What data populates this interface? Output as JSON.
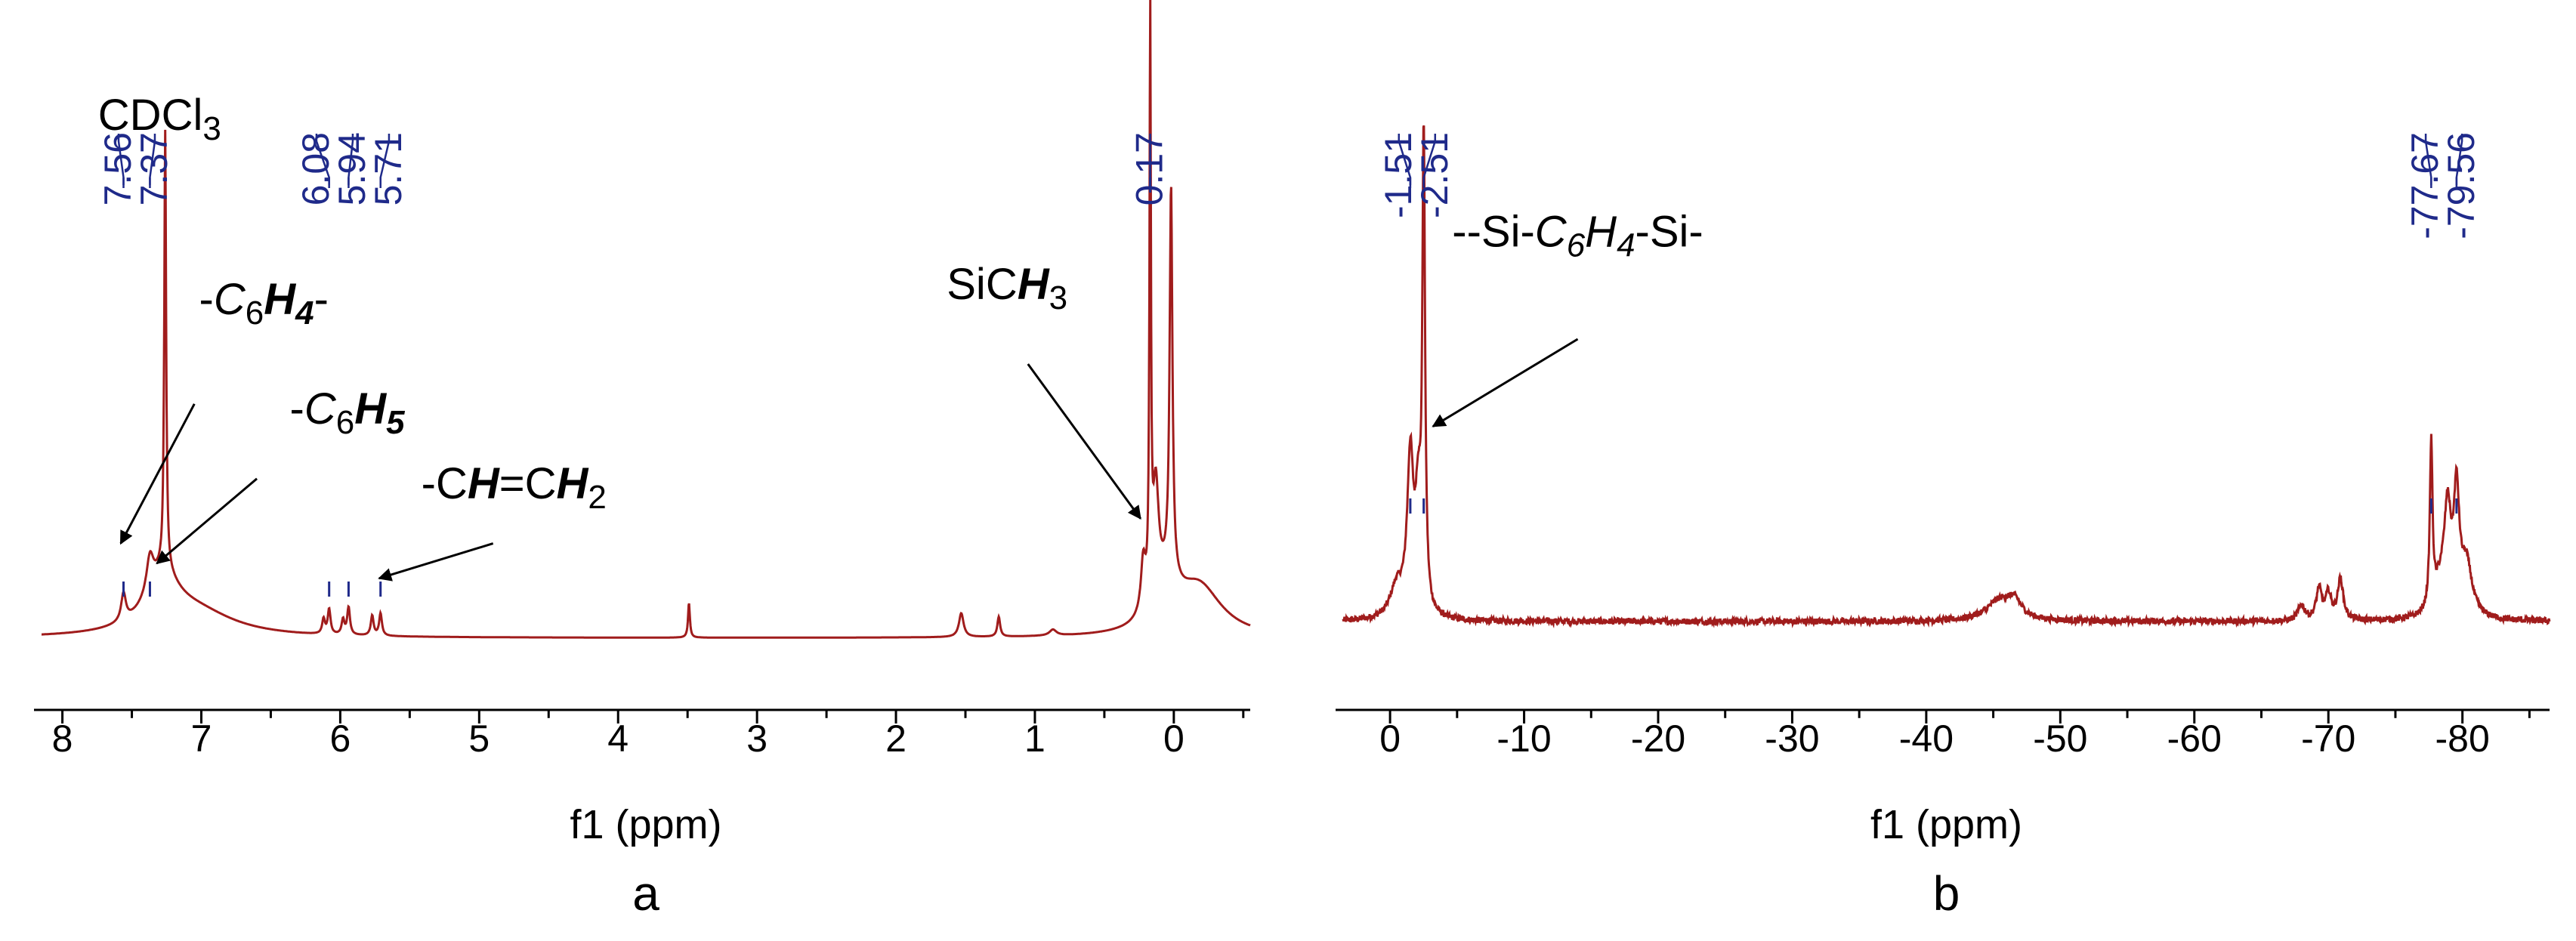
{
  "colors": {
    "spectrum": "#a01c1c",
    "peak_label": "#1f2a8a",
    "axis": "#000000"
  },
  "chart_data": [
    {
      "type": "line",
      "panel_label": "a",
      "xlabel": "f1 (ppm)",
      "xlim": [
        8.15,
        -0.55
      ],
      "x_reversed": true,
      "ticks": [
        8,
        7,
        6,
        5,
        4,
        3,
        2,
        1,
        0
      ],
      "tick_labels": [
        "8",
        "7",
        "6",
        "5",
        "4",
        "3",
        "2",
        "1",
        "0"
      ],
      "peak_labels": [
        "7.56",
        "7.37",
        "6.08",
        "5.94",
        "5.71",
        "0.17"
      ],
      "peak_positions": [
        7.56,
        7.37,
        6.08,
        5.94,
        5.71,
        0.17
      ],
      "annotations": [
        {
          "parts": [
            {
              "t": "CDCl"
            },
            {
              "t": "3",
              "sub": true
            }
          ],
          "x": 7.3,
          "y": 1.02,
          "arrow_to": null
        },
        {
          "parts": [
            {
              "t": "-"
            },
            {
              "t": "C",
              "it": true
            },
            {
              "t": "6",
              "sub": true
            },
            {
              "t": "H",
              "it": true,
              "b": true
            },
            {
              "t": "4",
              "sub": true,
              "it": true,
              "b": true
            },
            {
              "t": "-"
            }
          ],
          "x": 6.55,
          "y": 0.65,
          "arrow_from": [
            7.05,
            0.47
          ],
          "arrow_to": [
            7.58,
            0.19
          ]
        },
        {
          "parts": [
            {
              "t": "-"
            },
            {
              "t": "C",
              "it": true
            },
            {
              "t": "6",
              "sub": true
            },
            {
              "t": "H",
              "it": true,
              "b": true
            },
            {
              "t": "5",
              "sub": true,
              "it": true,
              "b": true
            }
          ],
          "x": 5.95,
          "y": 0.43,
          "arrow_from": [
            6.6,
            0.32
          ],
          "arrow_to": [
            7.32,
            0.15
          ]
        },
        {
          "parts": [
            {
              "t": "-C"
            },
            {
              "t": "H",
              "it": true,
              "b": true
            },
            {
              "t": "=C"
            },
            {
              "t": "H",
              "it": true,
              "b": true
            },
            {
              "t": "2",
              "sub": true
            }
          ],
          "x": 4.75,
          "y": 0.28,
          "arrow_from": [
            4.9,
            0.19
          ],
          "arrow_to": [
            5.72,
            0.12
          ]
        },
        {
          "parts": [
            {
              "t": "Si"
            },
            {
              "t": "C"
            },
            {
              "t": "H",
              "it": true,
              "b": true
            },
            {
              "t": "3",
              "sub": true
            }
          ],
          "x": 1.2,
          "y": 0.68,
          "arrow_from": [
            1.05,
            0.55
          ],
          "arrow_to": [
            0.24,
            0.24
          ]
        }
      ],
      "series": [
        {
          "baseline": 0.0,
          "lorentzians": [
            [
              7.26,
              0.88,
              0.008
            ],
            [
              7.56,
              0.055,
              0.02
            ],
            [
              7.37,
              0.07,
              0.03
            ],
            [
              7.28,
              0.1,
              0.14
            ],
            [
              7.05,
              0.05,
              0.35
            ],
            [
              6.08,
              0.05,
              0.012
            ],
            [
              6.12,
              0.03,
              0.012
            ],
            [
              5.94,
              0.055,
              0.012
            ],
            [
              5.98,
              0.03,
              0.012
            ],
            [
              5.71,
              0.045,
              0.012
            ],
            [
              5.77,
              0.04,
              0.012
            ],
            [
              3.49,
              0.07,
              0.008
            ],
            [
              1.53,
              0.048,
              0.02
            ],
            [
              1.26,
              0.04,
              0.012
            ],
            [
              0.87,
              0.012,
              0.03
            ],
            [
              0.17,
              1.15,
              0.006
            ],
            [
              0.13,
              0.22,
              0.025
            ],
            [
              0.22,
              0.1,
              0.02
            ],
            [
              0.02,
              0.78,
              0.012
            ],
            [
              0.06,
              0.08,
              0.1
            ],
            [
              -0.18,
              0.1,
              0.2
            ]
          ]
        }
      ]
    },
    {
      "type": "line",
      "panel_label": "b",
      "xlabel": "f1 (ppm)",
      "xlim": [
        3.5,
        -86.5
      ],
      "x_reversed": true,
      "ticks": [
        0,
        -10,
        -20,
        -30,
        -40,
        -50,
        -60,
        -70,
        -80
      ],
      "tick_labels": [
        "0",
        "-10",
        "-20",
        "-30",
        "-40",
        "-50",
        "-60",
        "-70",
        "-80"
      ],
      "peak_labels": [
        "-1.51",
        "-2.51",
        "-77.67",
        "-79.56"
      ],
      "peak_positions": [
        -1.51,
        -2.51,
        -77.67,
        -79.56
      ],
      "annotations": [
        {
          "parts": [
            {
              "t": "--Si-"
            },
            {
              "t": "C",
              "it": true
            },
            {
              "t": "6",
              "sub": true,
              "it": true
            },
            {
              "t": "H",
              "it": true
            },
            {
              "t": "4",
              "sub": true,
              "it": true
            },
            {
              "t": "-Si-"
            }
          ],
          "x": -14.0,
          "y": 0.73,
          "arrow_from": [
            -14.0,
            0.55
          ],
          "arrow_to": [
            -3.2,
            0.38
          ]
        }
      ],
      "series": [
        {
          "baseline": 0.0,
          "noise": 0.012,
          "lorentzians": [
            [
              -1.51,
              0.3,
              0.28
            ],
            [
              -2.51,
              0.9,
              0.12
            ],
            [
              -2.1,
              0.2,
              0.25
            ],
            [
              -0.5,
              0.06,
              0.6
            ],
            [
              -45.5,
              0.04,
              1.2
            ],
            [
              -46.6,
              0.03,
              0.6
            ],
            [
              -68.0,
              0.03,
              0.3
            ],
            [
              -69.3,
              0.06,
              0.25
            ],
            [
              -70.0,
              0.05,
              0.25
            ],
            [
              -70.9,
              0.08,
              0.25
            ],
            [
              -77.67,
              0.32,
              0.12
            ],
            [
              -78.9,
              0.18,
              0.3
            ],
            [
              -79.56,
              0.22,
              0.25
            ],
            [
              -80.3,
              0.1,
              0.5
            ],
            [
              -78.4,
              0.06,
              0.6
            ]
          ]
        }
      ]
    }
  ]
}
